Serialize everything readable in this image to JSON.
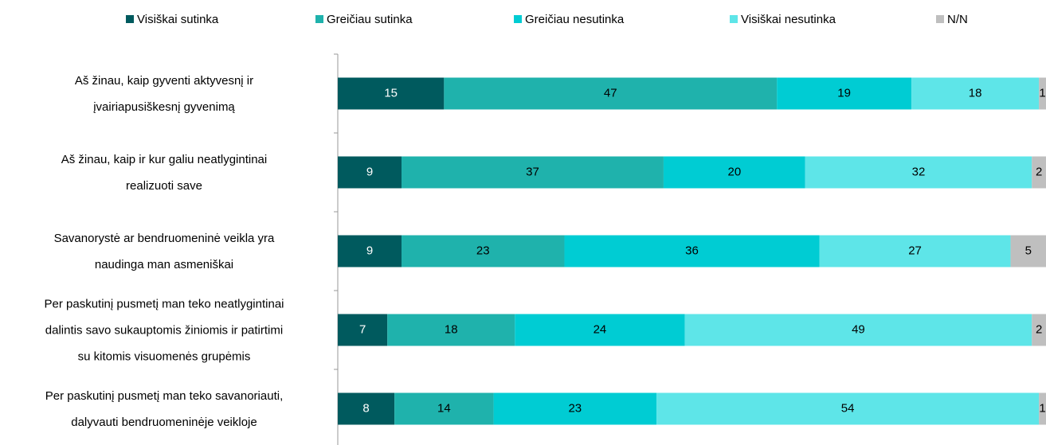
{
  "chart_data": {
    "type": "stacked_bar_horizontal",
    "categories": [
      "Aš žinau, kaip gyventi aktyvesnį ir\nįvairiapusiškesnį gyvenimą",
      "Aš žinau, kaip ir kur galiu neatlygintinai\nrealizuoti save",
      "Savanorystė ar bendruomeninė veikla yra\nnaudinga man asmeniškai",
      "Per paskutinį pusmetį man teko neatlygintinai\ndalintis savo sukauptomis žiniomis ir patirtimi\nsu kitomis visuomenės grupėmis",
      "Per paskutinį pusmetį man teko savanoriauti,\ndalyvauti bendruomeninėje veikloje"
    ],
    "series": [
      {
        "name": "Visiškai sutinka",
        "color": "#005a5e",
        "values": [
          15,
          9,
          9,
          7,
          8
        ]
      },
      {
        "name": "Greičiau sutinka",
        "color": "#1fb2ac",
        "values": [
          47,
          37,
          23,
          18,
          14
        ]
      },
      {
        "name": "Greičiau nesutinka",
        "color": "#00ccd3",
        "values": [
          19,
          20,
          36,
          24,
          23
        ]
      },
      {
        "name": "Visiškai nesutinka",
        "color": "#5ee5e8",
        "values": [
          18,
          32,
          27,
          49,
          54
        ]
      },
      {
        "name": "N/N",
        "color": "#bfbfbf",
        "values": [
          1,
          2,
          5,
          2,
          1
        ]
      }
    ],
    "xlim": [
      0,
      100
    ]
  }
}
